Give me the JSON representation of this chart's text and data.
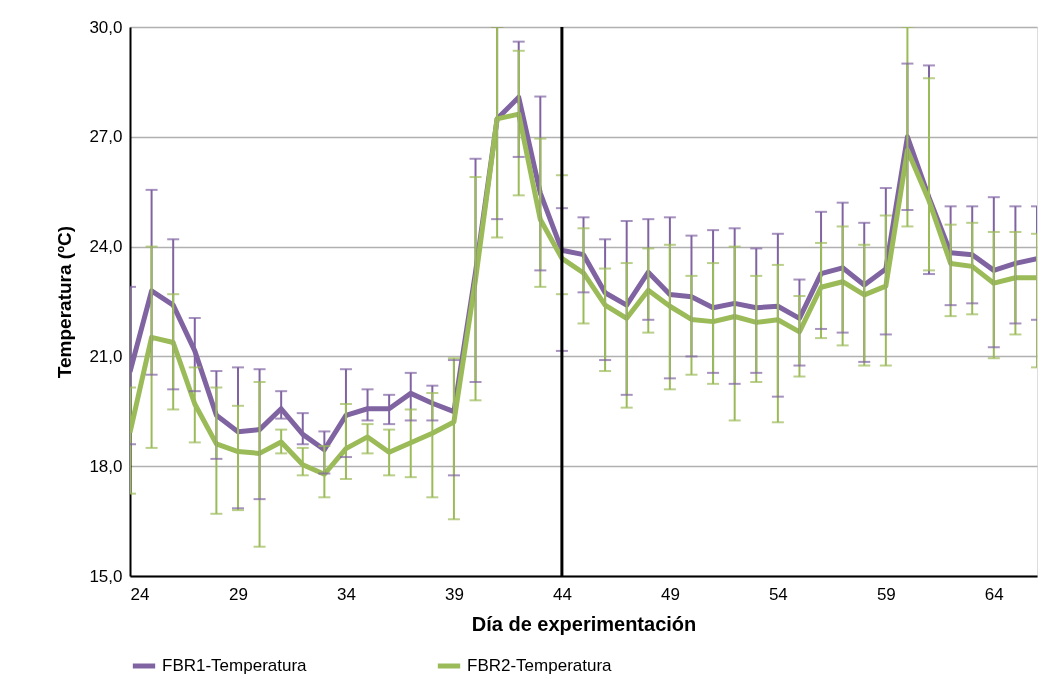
{
  "chart_data": {
    "type": "line",
    "xlabel": "Día de experimentación",
    "ylabel": "Temperatura (ºC)",
    "x": [
      24,
      25,
      26,
      27,
      28,
      29,
      30,
      31,
      32,
      33,
      34,
      35,
      36,
      37,
      38,
      39,
      40,
      41,
      42,
      43,
      44,
      45,
      46,
      47,
      48,
      49,
      50,
      51,
      52,
      53,
      54,
      55,
      56,
      57,
      58,
      59,
      60,
      61,
      62,
      63,
      64,
      65,
      66
    ],
    "xlim": [
      24,
      66
    ],
    "xticks": [
      24,
      29,
      34,
      39,
      44,
      49,
      54,
      59,
      64
    ],
    "ylim": [
      15,
      30
    ],
    "yticks": [
      {
        "value": 15,
        "label": "15,0"
      },
      {
        "value": 18,
        "label": "18,0"
      },
      {
        "value": 21,
        "label": "21,0"
      },
      {
        "value": 24,
        "label": "24,0"
      },
      {
        "value": 27,
        "label": "27,0"
      },
      {
        "value": 30,
        "label": "30,0"
      }
    ],
    "grid": "y",
    "legend": "bottom",
    "marker": "none",
    "line_style": "solid",
    "ref_lines": [
      {
        "axis": "x",
        "value": 44,
        "color": "#000000"
      }
    ],
    "series": [
      {
        "name": "FBR1-Temperatura",
        "color": "#8064a2",
        "values": [
          20.58,
          22.79,
          22.4,
          21.15,
          19.39,
          18.94,
          19.0,
          19.57,
          18.87,
          18.45,
          19.39,
          19.57,
          19.57,
          19.99,
          19.72,
          19.49,
          23.3,
          27.49,
          28.08,
          25.46,
          23.9,
          23.78,
          22.74,
          22.4,
          23.3,
          22.69,
          22.63,
          22.33,
          22.45,
          22.33,
          22.37,
          22.04,
          23.26,
          23.42,
          22.95,
          23.39,
          27.0,
          25.34,
          23.83,
          23.78,
          23.35,
          23.54,
          23.67
        ],
        "errors": [
          [
            18.6,
            22.9
          ],
          [
            20.5,
            25.55
          ],
          [
            20.1,
            24.2
          ],
          [
            20.05,
            22.05
          ],
          [
            18.2,
            20.6
          ],
          [
            16.85,
            20.7
          ],
          [
            17.1,
            20.65
          ],
          [
            19.3,
            20.05
          ],
          [
            18.6,
            19.45
          ],
          [
            17.8,
            18.95
          ],
          [
            18.25,
            20.65
          ],
          [
            19.25,
            20.1
          ],
          [
            19.15,
            19.95
          ],
          [
            19.25,
            20.55
          ],
          [
            19.25,
            20.2
          ],
          [
            17.75,
            20.9
          ],
          [
            20.3,
            26.4
          ],
          [
            24.75,
            30.0
          ],
          [
            26.45,
            29.6
          ],
          [
            23.35,
            28.1
          ],
          [
            21.15,
            25.05
          ],
          [
            22.75,
            24.8
          ],
          [
            20.9,
            24.2
          ],
          [
            19.95,
            24.7
          ],
          [
            22.0,
            24.75
          ],
          [
            20.4,
            24.8
          ],
          [
            21.0,
            24.3
          ],
          [
            20.55,
            24.45
          ],
          [
            20.25,
            24.5
          ],
          [
            20.55,
            23.95
          ],
          [
            19.9,
            24.35
          ],
          [
            20.75,
            23.1
          ],
          [
            21.75,
            24.95
          ],
          [
            21.65,
            25.2
          ],
          [
            20.85,
            24.65
          ],
          [
            21.6,
            25.6
          ],
          [
            25.0,
            29.0
          ],
          [
            23.25,
            28.95
          ],
          [
            22.4,
            25.1
          ],
          [
            22.45,
            25.1
          ],
          [
            21.25,
            25.35
          ],
          [
            21.9,
            25.1
          ],
          [
            22.0,
            25.1
          ]
        ]
      },
      {
        "name": "FBR2-Temperatura",
        "color": "#9bbb59",
        "values": [
          18.92,
          21.52,
          21.38,
          19.7,
          18.61,
          18.4,
          18.35,
          18.66,
          18.04,
          17.78,
          18.48,
          18.8,
          18.38,
          18.64,
          18.9,
          19.21,
          23.1,
          27.49,
          27.62,
          24.74,
          23.68,
          23.28,
          22.4,
          22.04,
          22.81,
          22.37,
          22.01,
          21.95,
          22.09,
          21.93,
          22.0,
          21.67,
          22.89,
          23.04,
          22.68,
          22.92,
          26.63,
          25.25,
          23.54,
          23.46,
          23.0,
          23.15,
          23.15
        ],
        "errors": [
          [
            17.25,
            20.15
          ],
          [
            18.5,
            24.0
          ],
          [
            19.55,
            22.7
          ],
          [
            18.65,
            20.7
          ],
          [
            16.7,
            20.15
          ],
          [
            16.8,
            19.65
          ],
          [
            15.8,
            20.3
          ],
          [
            18.35,
            19.0
          ],
          [
            17.75,
            18.5
          ],
          [
            17.15,
            18.55
          ],
          [
            17.65,
            19.7
          ],
          [
            18.35,
            19.15
          ],
          [
            17.75,
            19.0
          ],
          [
            17.7,
            19.55
          ],
          [
            17.15,
            20.0
          ],
          [
            16.55,
            20.95
          ],
          [
            19.8,
            25.9
          ],
          [
            24.25,
            30.0
          ],
          [
            25.4,
            29.35
          ],
          [
            22.9,
            26.95
          ],
          [
            22.7,
            25.95
          ],
          [
            21.9,
            24.5
          ],
          [
            20.6,
            23.4
          ],
          [
            19.6,
            23.55
          ],
          [
            21.65,
            23.95
          ],
          [
            20.1,
            24.05
          ],
          [
            20.5,
            23.2
          ],
          [
            20.25,
            23.55
          ],
          [
            19.25,
            24.0
          ],
          [
            20.3,
            23.2
          ],
          [
            19.2,
            23.5
          ],
          [
            20.45,
            22.65
          ],
          [
            21.5,
            24.1
          ],
          [
            21.3,
            24.55
          ],
          [
            20.75,
            24.05
          ],
          [
            20.75,
            24.85
          ],
          [
            24.55,
            30.0
          ],
          [
            23.35,
            28.6
          ],
          [
            22.1,
            24.6
          ],
          [
            22.15,
            24.65
          ],
          [
            20.95,
            24.4
          ],
          [
            21.6,
            24.4
          ],
          [
            20.7,
            24.35
          ]
        ]
      }
    ]
  }
}
